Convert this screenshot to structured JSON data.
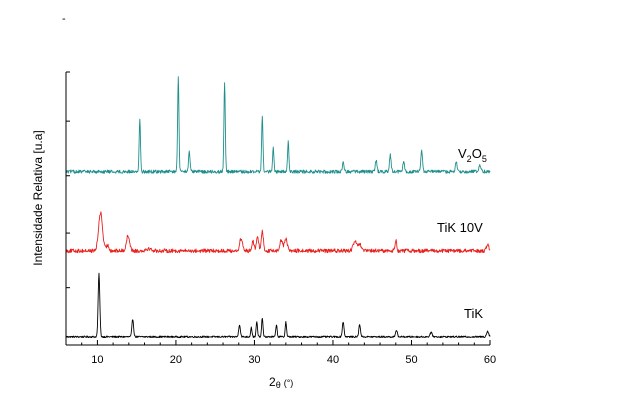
{
  "chart_data": {
    "type": "line",
    "title": "",
    "ylabel": "Intensidade Relativa [u.a]",
    "xlabel": {
      "main": "2",
      "theta": "θ",
      "unit": "(°)"
    },
    "xlim": [
      6,
      60
    ],
    "ylim": [
      0,
      10
    ],
    "x_ticks": [
      10,
      20,
      30,
      40,
      50,
      60
    ],
    "grid": false,
    "series": [
      {
        "name": "TiK",
        "label_parts": {
          "text": "TiK"
        },
        "color": "#000000",
        "baseline": 0.3,
        "noise": 0.03,
        "peaks": [
          {
            "x": 10.2,
            "h": 2.3,
            "w": 0.15
          },
          {
            "x": 14.5,
            "h": 0.65,
            "w": 0.15
          },
          {
            "x": 28.1,
            "h": 0.45,
            "w": 0.15
          },
          {
            "x": 29.6,
            "h": 0.35,
            "w": 0.12
          },
          {
            "x": 30.3,
            "h": 0.55,
            "w": 0.12
          },
          {
            "x": 31.0,
            "h": 0.7,
            "w": 0.12
          },
          {
            "x": 32.8,
            "h": 0.45,
            "w": 0.12
          },
          {
            "x": 34.0,
            "h": 0.55,
            "w": 0.12
          },
          {
            "x": 41.3,
            "h": 0.55,
            "w": 0.15
          },
          {
            "x": 43.4,
            "h": 0.45,
            "w": 0.15
          },
          {
            "x": 48.1,
            "h": 0.25,
            "w": 0.15
          },
          {
            "x": 52.5,
            "h": 0.15,
            "w": 0.2
          },
          {
            "x": 59.7,
            "h": 0.2,
            "w": 0.2
          }
        ]
      },
      {
        "name": "TiK 10V",
        "label_parts": {
          "text": "TiK 10V"
        },
        "color": "#e8211d",
        "baseline": 3.45,
        "noise": 0.07,
        "peaks": [
          {
            "x": 10.4,
            "h": 1.4,
            "w": 0.35
          },
          {
            "x": 11.3,
            "h": 0.2,
            "w": 0.25
          },
          {
            "x": 13.9,
            "h": 0.55,
            "w": 0.3
          },
          {
            "x": 16.5,
            "h": 0.08,
            "w": 0.5
          },
          {
            "x": 28.3,
            "h": 0.45,
            "w": 0.25
          },
          {
            "x": 29.8,
            "h": 0.35,
            "w": 0.2
          },
          {
            "x": 30.4,
            "h": 0.5,
            "w": 0.2
          },
          {
            "x": 31.0,
            "h": 0.7,
            "w": 0.2
          },
          {
            "x": 33.4,
            "h": 0.4,
            "w": 0.25
          },
          {
            "x": 34.0,
            "h": 0.45,
            "w": 0.25
          },
          {
            "x": 42.8,
            "h": 0.35,
            "w": 0.3
          },
          {
            "x": 43.4,
            "h": 0.25,
            "w": 0.25
          },
          {
            "x": 48.0,
            "h": 0.4,
            "w": 0.15
          },
          {
            "x": 59.7,
            "h": 0.2,
            "w": 0.25
          }
        ]
      },
      {
        "name": "V2O5",
        "label_parts": {
          "v": "V",
          "s1": "2",
          "o": "O",
          "s2": "5"
        },
        "color": "#1f8f8c",
        "baseline": 6.35,
        "noise": 0.06,
        "peaks": [
          {
            "x": 15.4,
            "h": 1.9,
            "w": 0.12
          },
          {
            "x": 20.3,
            "h": 3.45,
            "w": 0.12
          },
          {
            "x": 21.7,
            "h": 0.8,
            "w": 0.12
          },
          {
            "x": 26.2,
            "h": 3.3,
            "w": 0.12
          },
          {
            "x": 31.0,
            "h": 2.0,
            "w": 0.12
          },
          {
            "x": 32.4,
            "h": 0.85,
            "w": 0.12
          },
          {
            "x": 34.3,
            "h": 1.1,
            "w": 0.12
          },
          {
            "x": 41.3,
            "h": 0.35,
            "w": 0.15
          },
          {
            "x": 45.5,
            "h": 0.4,
            "w": 0.15
          },
          {
            "x": 47.3,
            "h": 0.6,
            "w": 0.15
          },
          {
            "x": 49.0,
            "h": 0.35,
            "w": 0.15
          },
          {
            "x": 51.3,
            "h": 0.75,
            "w": 0.15
          },
          {
            "x": 55.7,
            "h": 0.35,
            "w": 0.15
          },
          {
            "x": 58.7,
            "h": 0.25,
            "w": 0.2
          }
        ]
      }
    ]
  }
}
